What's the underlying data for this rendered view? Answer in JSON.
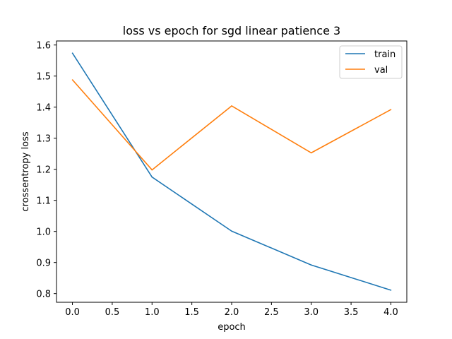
{
  "chart_data": {
    "type": "line",
    "title": "loss vs epoch for sgd linear patience 3",
    "xlabel": "epoch",
    "ylabel": "crossentropy loss",
    "x": [
      0,
      1,
      2,
      3,
      4
    ],
    "xlim": [
      -0.2,
      4.2
    ],
    "ylim": [
      0.772,
      1.613
    ],
    "xticks": [
      "0.0",
      "0.5",
      "1.0",
      "1.5",
      "2.0",
      "2.5",
      "3.0",
      "3.5",
      "4.0"
    ],
    "yticks": [
      "0.8",
      "0.9",
      "1.0",
      "1.1",
      "1.2",
      "1.3",
      "1.4",
      "1.5",
      "1.6"
    ],
    "grid": false,
    "legend_position": "top-right",
    "series": [
      {
        "name": "train",
        "color": "#1f77b4",
        "values": [
          1.574,
          1.175,
          1.001,
          0.892,
          0.811
        ]
      },
      {
        "name": "val",
        "color": "#ff7f0e",
        "values": [
          1.488,
          1.198,
          1.404,
          1.253,
          1.392
        ]
      }
    ]
  }
}
